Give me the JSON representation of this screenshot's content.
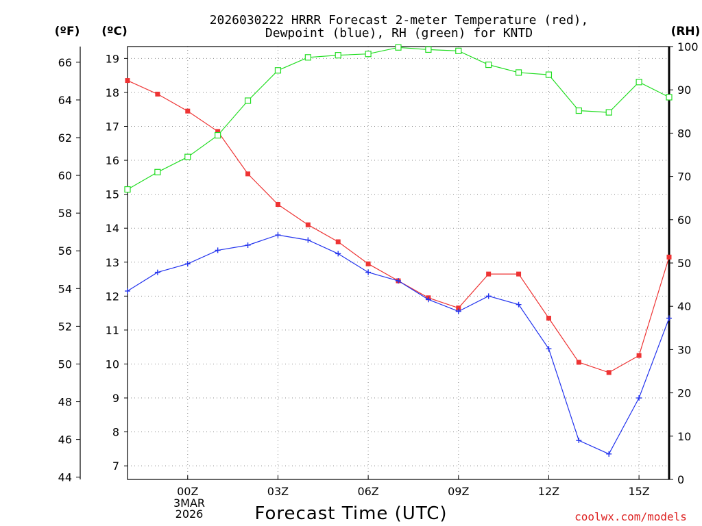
{
  "chart_data": {
    "type": "line",
    "title_line1": "2026030222 HRRR Forecast 2-meter Temperature (red),",
    "title_line2": "Dewpoint (blue), RH (green) for KNTD",
    "xlabel": "Forecast Time (UTC)",
    "units": {
      "fahrenheit": "(ºF)",
      "celsius": "(ºC)",
      "rh": "(RH)"
    },
    "x": [
      -2,
      -1,
      0,
      1,
      2,
      3,
      4,
      5,
      6,
      7,
      8,
      9,
      10,
      11,
      12,
      13,
      14,
      15,
      16
    ],
    "x_ticks": [
      {
        "value": 0,
        "label": "00Z"
      },
      {
        "value": 3,
        "label": "03Z"
      },
      {
        "value": 6,
        "label": "06Z"
      },
      {
        "value": 9,
        "label": "09Z"
      },
      {
        "value": 12,
        "label": "12Z"
      },
      {
        "value": 15,
        "label": "15Z"
      }
    ],
    "date_label_line1": "3MAR",
    "date_label_line2": "2026",
    "xlim": [
      -2,
      16
    ],
    "ylim_c": [
      6.6,
      19.35
    ],
    "ylim_rh": [
      0,
      100
    ],
    "yticks_c": [
      7,
      8,
      9,
      10,
      11,
      12,
      13,
      14,
      15,
      16,
      17,
      18,
      19
    ],
    "yticks_f": [
      44,
      46,
      48,
      50,
      52,
      54,
      56,
      58,
      60,
      62,
      64,
      66
    ],
    "yticks_rh": [
      0,
      10,
      20,
      30,
      40,
      50,
      60,
      70,
      80,
      90,
      100
    ],
    "series": [
      {
        "name": "Temperature",
        "axis": "celsius",
        "color": "#ee3333",
        "marker": "filled-square",
        "values": [
          18.35,
          17.95,
          17.45,
          16.85,
          15.6,
          14.7,
          14.1,
          13.6,
          12.95,
          12.45,
          11.95,
          11.65,
          12.65,
          12.65,
          11.35,
          10.05,
          9.75,
          10.25,
          13.15
        ]
      },
      {
        "name": "Dewpoint",
        "axis": "celsius",
        "color": "#2233ee",
        "marker": "plus",
        "values": [
          12.15,
          12.7,
          12.95,
          13.35,
          13.5,
          13.8,
          13.65,
          13.25,
          12.7,
          12.45,
          11.9,
          11.55,
          12.0,
          11.75,
          10.45,
          7.75,
          7.35,
          9.0,
          11.35
        ]
      },
      {
        "name": "RH",
        "axis": "rh",
        "color": "#22dd22",
        "marker": "open-square",
        "values": [
          67,
          71,
          74.5,
          79.5,
          87.5,
          94.5,
          97.5,
          98,
          98.3,
          99.8,
          99.3,
          99,
          95.8,
          94,
          93.5,
          85.2,
          84.8,
          91.8,
          88.3
        ]
      }
    ]
  },
  "credit": "coolwx.com/models"
}
